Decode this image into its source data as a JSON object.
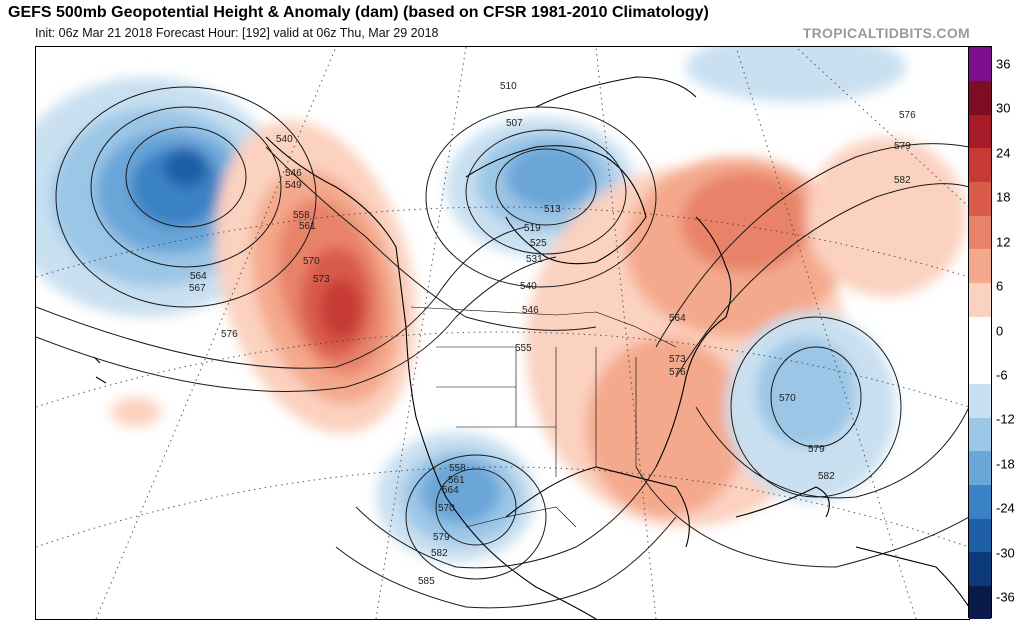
{
  "header": {
    "title": "GEFS 500mb Geopotential Height & Anomaly (dam) (based on CFSR 1981-2010 Climatology)",
    "subtitle": "Init: 06z Mar 21 2018   Forecast Hour: [192]   valid at 06z Thu, Mar 29 2018",
    "watermark": "TROPICALTIDBITS.COM"
  },
  "colorbar": {
    "tick_labels": [
      "36",
      "30",
      "24",
      "18",
      "12",
      "6",
      "0",
      "-6",
      "-12",
      "-18",
      "-24",
      "-30",
      "-36"
    ],
    "colors": [
      "#0a1a4a",
      "#0c3a78",
      "#1f5fa8",
      "#3b82c4",
      "#6aa6d8",
      "#9cc6e6",
      "#c9e0f1",
      "#ffffff",
      "#ffffff",
      "#fbd1bf",
      "#f4a98c",
      "#e8836a",
      "#d95a48",
      "#c63a36",
      "#a81c2a",
      "#7d0d20",
      "#7a0e8c"
    ]
  },
  "contour_labels": [
    "510",
    "507",
    "513",
    "519",
    "525",
    "531",
    "540",
    "546",
    "540",
    "546",
    "549",
    "558",
    "561",
    "570",
    "573",
    "564",
    "567",
    "576",
    "555",
    "564",
    "573",
    "576",
    "576",
    "579",
    "582",
    "570",
    "579",
    "582",
    "558",
    "561",
    "564",
    "570",
    "579",
    "582",
    "585"
  ]
}
